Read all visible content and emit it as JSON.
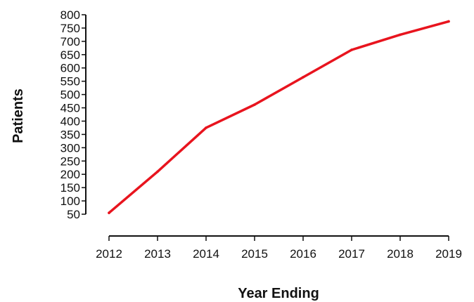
{
  "chart_data": {
    "type": "line",
    "xlabel": "Year Ending",
    "ylabel": "Patients",
    "x": [
      2012,
      2013,
      2014,
      2015,
      2016,
      2017,
      2018,
      2019
    ],
    "series": [
      {
        "values": [
          55,
          210,
          375,
          462,
          565,
          668,
          725,
          775
        ],
        "color": "#e8141e"
      }
    ],
    "xticks": [
      "2012",
      "2013",
      "2014",
      "2015",
      "2016",
      "2017",
      "2018",
      "2019"
    ],
    "yticks": [
      50,
      100,
      150,
      200,
      250,
      300,
      350,
      400,
      450,
      500,
      550,
      600,
      650,
      700,
      750,
      800
    ],
    "ylim": [
      50,
      800
    ],
    "grid": false,
    "legend": "none"
  }
}
